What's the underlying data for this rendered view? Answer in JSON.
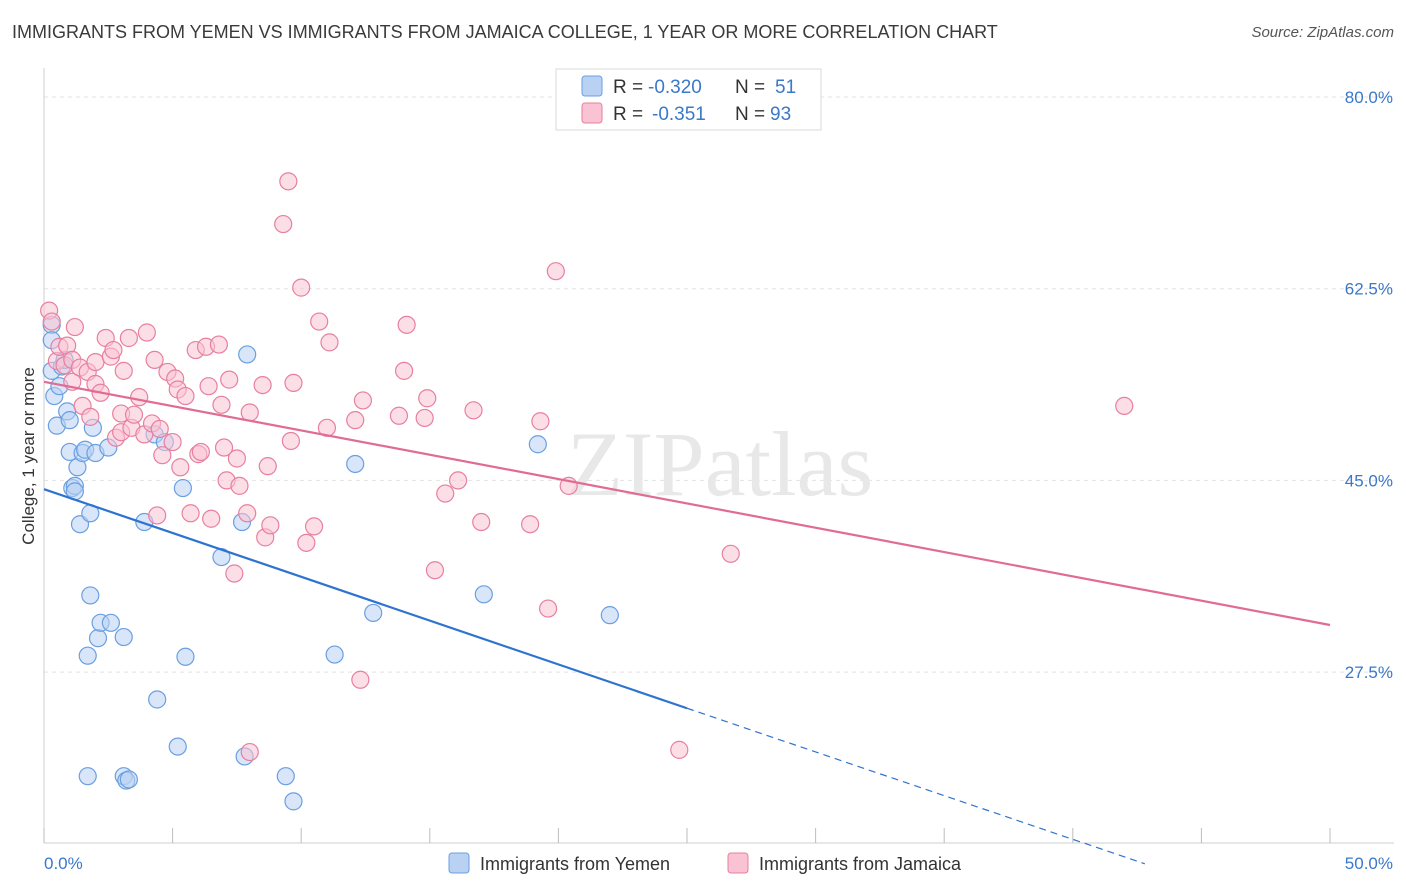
{
  "chart_data": {
    "type": "scatter",
    "title": "IMMIGRANTS FROM YEMEN VS IMMIGRANTS FROM JAMAICA COLLEGE, 1 YEAR OR MORE CORRELATION CHART",
    "source": "Source: ZipAtlas.com",
    "xlabel": "",
    "ylabel": "College, 1 year or more",
    "xlim": [
      0,
      50
    ],
    "ylim": [
      10,
      82
    ],
    "x_tick_labels": [
      "0.0%",
      "50.0%"
    ],
    "y_ticks": [
      27.5,
      45.0,
      62.5,
      80.0
    ],
    "y_tick_labels": [
      "27.5%",
      "45.0%",
      "62.5%",
      "80.0%"
    ],
    "grid": true,
    "watermark": "ZIPatlas",
    "legend_position": "top-center",
    "legend": [
      {
        "name": "Immigrants from Yemen",
        "r_label": "R =",
        "r": "-0.320",
        "n_label": "N =",
        "n": "51",
        "color": "#6a9fe0",
        "fill": "#b9d2f4"
      },
      {
        "name": "Immigrants from Jamaica",
        "r_label": "R =",
        "r": "-0.351",
        "n_label": "N =",
        "n": "93",
        "color": "#e87fa1",
        "fill": "#f9c3d4"
      }
    ],
    "series": [
      {
        "name": "Immigrants from Yemen",
        "color": "#6a9fe0",
        "trend_color": "#2f73d0",
        "trend": {
          "x0": 0,
          "y0": 44.2,
          "x1": 25,
          "y1": 24.2,
          "dash_to_x": 42.8,
          "dash_to_y": 10
        },
        "points": [
          [
            0.3,
            59.2
          ],
          [
            0.3,
            57.8
          ],
          [
            0.3,
            55.0
          ],
          [
            0.4,
            52.7
          ],
          [
            0.5,
            50.0
          ],
          [
            0.6,
            53.6
          ],
          [
            0.7,
            55.4
          ],
          [
            0.8,
            56.0
          ],
          [
            0.9,
            51.3
          ],
          [
            1.0,
            50.5
          ],
          [
            1.0,
            47.6
          ],
          [
            1.1,
            44.3
          ],
          [
            1.2,
            44.5
          ],
          [
            1.2,
            44.0
          ],
          [
            1.3,
            46.2
          ],
          [
            1.4,
            41.0
          ],
          [
            1.5,
            47.5
          ],
          [
            1.6,
            47.8
          ],
          [
            1.8,
            42.0
          ],
          [
            1.8,
            34.5
          ],
          [
            1.9,
            49.8
          ],
          [
            2.0,
            47.5
          ],
          [
            2.1,
            30.6
          ],
          [
            2.2,
            32.0
          ],
          [
            2.5,
            48.0
          ],
          [
            2.6,
            32.0
          ],
          [
            1.7,
            29.0
          ],
          [
            1.7,
            18.0
          ],
          [
            3.1,
            30.7
          ],
          [
            3.1,
            18.0
          ],
          [
            3.2,
            17.6
          ],
          [
            3.3,
            17.7
          ],
          [
            3.9,
            41.2
          ],
          [
            4.3,
            49.2
          ],
          [
            4.4,
            25.0
          ],
          [
            4.7,
            48.5
          ],
          [
            5.2,
            20.7
          ],
          [
            5.4,
            44.3
          ],
          [
            5.5,
            28.9
          ],
          [
            6.9,
            38.0
          ],
          [
            7.7,
            41.2
          ],
          [
            7.8,
            19.8
          ],
          [
            7.9,
            56.5
          ],
          [
            9.4,
            18.0
          ],
          [
            9.7,
            15.7
          ],
          [
            11.3,
            29.1
          ],
          [
            12.1,
            46.5
          ],
          [
            12.8,
            32.9
          ],
          [
            17.1,
            34.6
          ],
          [
            19.2,
            48.3
          ],
          [
            22.0,
            32.7
          ]
        ]
      },
      {
        "name": "Immigrants from Jamaica",
        "color": "#e87fa1",
        "trend_color": "#e06c95",
        "trend": {
          "x0": 0,
          "y0": 54.0,
          "x1": 50,
          "y1": 31.8
        },
        "points": [
          [
            0.2,
            60.5
          ],
          [
            0.3,
            59.5
          ],
          [
            0.5,
            55.9
          ],
          [
            0.6,
            57.2
          ],
          [
            0.8,
            55.5
          ],
          [
            0.9,
            57.3
          ],
          [
            1.1,
            56.0
          ],
          [
            1.1,
            54.0
          ],
          [
            1.2,
            59.0
          ],
          [
            1.4,
            55.3
          ],
          [
            1.5,
            51.8
          ],
          [
            1.7,
            54.9
          ],
          [
            1.8,
            50.8
          ],
          [
            2.0,
            53.8
          ],
          [
            2.0,
            55.8
          ],
          [
            2.2,
            53.0
          ],
          [
            2.4,
            58.0
          ],
          [
            2.6,
            56.3
          ],
          [
            2.7,
            56.9
          ],
          [
            2.8,
            48.9
          ],
          [
            3.0,
            51.1
          ],
          [
            3.0,
            49.4
          ],
          [
            3.1,
            55.0
          ],
          [
            3.3,
            58.0
          ],
          [
            3.4,
            49.8
          ],
          [
            3.5,
            51.0
          ],
          [
            3.7,
            52.6
          ],
          [
            3.9,
            49.2
          ],
          [
            4.0,
            58.5
          ],
          [
            4.2,
            50.2
          ],
          [
            4.3,
            56.0
          ],
          [
            4.4,
            41.8
          ],
          [
            4.5,
            49.7
          ],
          [
            4.6,
            47.3
          ],
          [
            4.8,
            54.9
          ],
          [
            5.0,
            48.5
          ],
          [
            5.1,
            54.3
          ],
          [
            5.2,
            53.3
          ],
          [
            5.3,
            46.2
          ],
          [
            5.5,
            52.7
          ],
          [
            5.7,
            42.0
          ],
          [
            5.9,
            56.9
          ],
          [
            6.0,
            47.4
          ],
          [
            6.1,
            47.6
          ],
          [
            6.3,
            57.2
          ],
          [
            6.4,
            53.6
          ],
          [
            6.5,
            41.5
          ],
          [
            6.8,
            57.4
          ],
          [
            6.9,
            51.9
          ],
          [
            7.0,
            48.0
          ],
          [
            7.1,
            45.0
          ],
          [
            7.2,
            54.2
          ],
          [
            7.4,
            36.5
          ],
          [
            7.5,
            47.0
          ],
          [
            7.6,
            44.5
          ],
          [
            7.9,
            42.0
          ],
          [
            8.0,
            51.2
          ],
          [
            8.5,
            53.7
          ],
          [
            8.6,
            39.8
          ],
          [
            8.7,
            46.3
          ],
          [
            8.8,
            40.9
          ],
          [
            9.5,
            72.3
          ],
          [
            9.3,
            68.4
          ],
          [
            9.6,
            48.6
          ],
          [
            9.7,
            53.9
          ],
          [
            10.0,
            62.6
          ],
          [
            10.2,
            39.3
          ],
          [
            10.5,
            40.8
          ],
          [
            10.7,
            59.5
          ],
          [
            11.0,
            49.8
          ],
          [
            11.1,
            57.6
          ],
          [
            12.1,
            50.5
          ],
          [
            12.4,
            52.3
          ],
          [
            12.3,
            26.8
          ],
          [
            13.8,
            50.9
          ],
          [
            14.0,
            55.0
          ],
          [
            14.1,
            59.2
          ],
          [
            14.8,
            50.7
          ],
          [
            14.9,
            52.5
          ],
          [
            15.2,
            36.8
          ],
          [
            15.6,
            43.8
          ],
          [
            16.1,
            45.0
          ],
          [
            16.7,
            51.4
          ],
          [
            17.0,
            41.2
          ],
          [
            18.9,
            41.0
          ],
          [
            19.3,
            50.4
          ],
          [
            19.6,
            33.3
          ],
          [
            19.9,
            64.1
          ],
          [
            20.4,
            44.5
          ],
          [
            24.7,
            20.4
          ],
          [
            26.7,
            38.3
          ],
          [
            42.0,
            51.8
          ],
          [
            8.0,
            20.2
          ]
        ]
      }
    ]
  }
}
